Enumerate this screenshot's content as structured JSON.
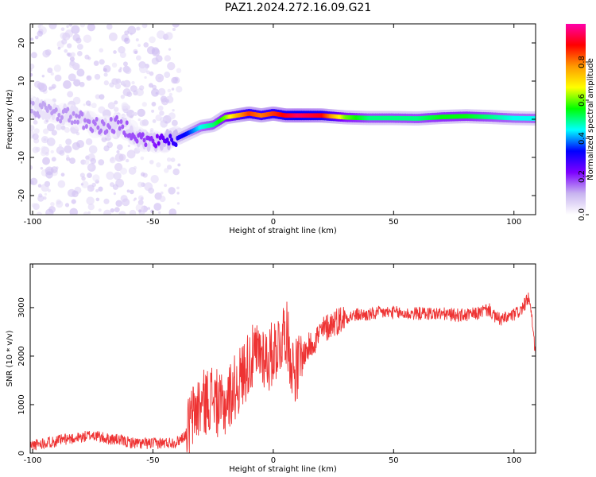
{
  "title": "PAZ1.2024.272.16.09.G21",
  "chart_data": [
    {
      "type": "heatmap",
      "xlabel": "Height of straight line (km)",
      "ylabel": "Frequency (Hz)",
      "xlim": [
        -101,
        109
      ],
      "ylim": [
        -25,
        25
      ],
      "x_ticks": [
        -100,
        -50,
        0,
        50,
        100
      ],
      "y_ticks": [
        -20,
        -10,
        0,
        10,
        20
      ],
      "colorbar": {
        "label": "Normalized spectral amplitude",
        "range": [
          0,
          1
        ],
        "ticks": [
          0.0,
          0.2,
          0.4,
          0.6,
          0.8
        ],
        "colormap": [
          "#ffffff",
          "#c8b4f0",
          "#7d00ff",
          "#0000ff",
          "#00ffff",
          "#00ff00",
          "#ffff00",
          "#ff9900",
          "#ff0000",
          "#ff00aa"
        ]
      },
      "ridge": {
        "x": [
          -101,
          -95,
          -90,
          -85,
          -80,
          -75,
          -70,
          -65,
          -60,
          -55,
          -50,
          -45,
          -40,
          -35,
          -30,
          -25,
          -20,
          -15,
          -10,
          -5,
          0,
          5,
          10,
          20,
          30,
          40,
          50,
          60,
          70,
          80,
          90,
          100,
          109
        ],
        "y": [
          3,
          2.5,
          1.5,
          1,
          0,
          -1.5,
          -2,
          -1.5,
          -2.5,
          -5,
          -6,
          -5.5,
          -5,
          -3.5,
          -2,
          -1.5,
          0.5,
          1,
          1.5,
          1,
          1.5,
          1,
          1,
          1,
          0.5,
          0.3,
          0.3,
          0.2,
          0.6,
          0.8,
          0.6,
          0.3,
          0.2
        ],
        "amplitude": [
          0.12,
          0.12,
          0.13,
          0.13,
          0.14,
          0.15,
          0.15,
          0.16,
          0.17,
          0.18,
          0.2,
          0.25,
          0.3,
          0.35,
          0.45,
          0.5,
          0.6,
          0.75,
          0.85,
          0.8,
          0.85,
          0.9,
          0.95,
          0.9,
          0.6,
          0.5,
          0.5,
          0.5,
          0.55,
          0.55,
          0.5,
          0.45,
          0.45
        ]
      }
    },
    {
      "type": "line",
      "xlabel": "Height of straight line (km)",
      "ylabel": "SNR (10 * v/v)",
      "xlim": [
        -101,
        109
      ],
      "ylim": [
        0,
        3900
      ],
      "x_ticks": [
        -100,
        -50,
        0,
        50,
        100
      ],
      "y_ticks": [
        0,
        1000,
        2000,
        3000
      ],
      "color": "#ee3333",
      "series": [
        {
          "x": [
            -101,
            -95,
            -90,
            -85,
            -80,
            -75,
            -70,
            -65,
            -60,
            -55,
            -50,
            -45,
            -40,
            -36,
            -34,
            -32,
            -30,
            -27,
            -25,
            -22,
            -20,
            -17,
            -15,
            -12,
            -10,
            -7,
            -5,
            -2,
            0,
            3,
            5,
            8,
            10,
            12,
            15,
            20,
            25,
            30,
            35,
            40,
            45,
            50,
            55,
            60,
            65,
            70,
            75,
            80,
            85,
            88,
            90,
            92,
            95,
            100,
            103,
            105,
            106,
            107,
            108,
            109
          ],
          "y": [
            150,
            220,
            250,
            300,
            320,
            380,
            300,
            280,
            220,
            200,
            200,
            210,
            230,
            400,
            700,
            900,
            1000,
            1100,
            1200,
            900,
            1000,
            1300,
            1400,
            1700,
            1900,
            2000,
            2100,
            1900,
            2100,
            2300,
            2600,
            1800,
            1700,
            2000,
            2200,
            2500,
            2700,
            2800,
            2850,
            2850,
            2900,
            2900,
            2870,
            2880,
            2880,
            2870,
            2850,
            2840,
            2880,
            2950,
            2950,
            2800,
            2750,
            2850,
            2950,
            3100,
            3200,
            2950,
            2500,
            2000
          ]
        }
      ]
    }
  ]
}
